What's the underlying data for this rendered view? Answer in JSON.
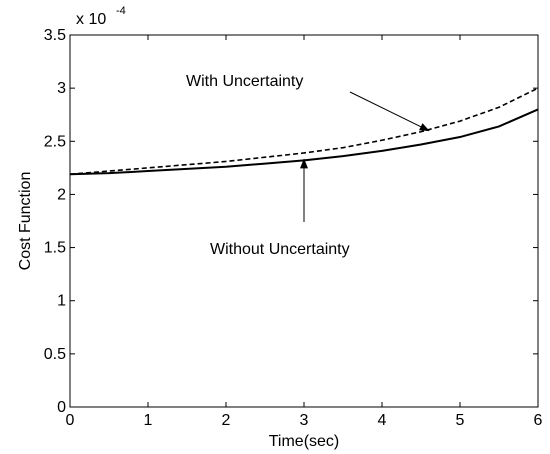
{
  "chart_data": {
    "type": "line",
    "xlabel": "Time(sec)",
    "ylabel": "Cost Function",
    "xlim": [
      0,
      6
    ],
    "ylim": [
      0,
      3.5
    ],
    "x_ticks": [
      "0",
      "1",
      "2",
      "3",
      "4",
      "5",
      "6"
    ],
    "y_ticks": [
      "0",
      "0.5",
      "1",
      "1.5",
      "2",
      "2.5",
      "3",
      "3.5"
    ],
    "y_multiplier": {
      "base": "x 10",
      "exponent": "-4"
    },
    "grid": false,
    "x": [
      0,
      0.5,
      1,
      1.5,
      2,
      2.5,
      3,
      3.5,
      4,
      4.5,
      5,
      5.5,
      6
    ],
    "series": [
      {
        "values": [
          2.19,
          2.22,
          2.25,
          2.28,
          2.31,
          2.35,
          2.39,
          2.44,
          2.51,
          2.59,
          2.69,
          2.82,
          3.0
        ],
        "style": "dashed",
        "color": "#000000"
      },
      {
        "values": [
          2.19,
          2.2,
          2.22,
          2.24,
          2.26,
          2.29,
          2.32,
          2.36,
          2.41,
          2.47,
          2.54,
          2.64,
          2.8
        ],
        "style": "solid",
        "color": "#000000"
      }
    ],
    "annotations": [
      {
        "text": "With Uncertainty",
        "target_x": 4.6,
        "target_y": 2.6
      },
      {
        "text": "Without Uncertainty",
        "target_x": 3.0,
        "target_y": 2.33
      }
    ]
  }
}
